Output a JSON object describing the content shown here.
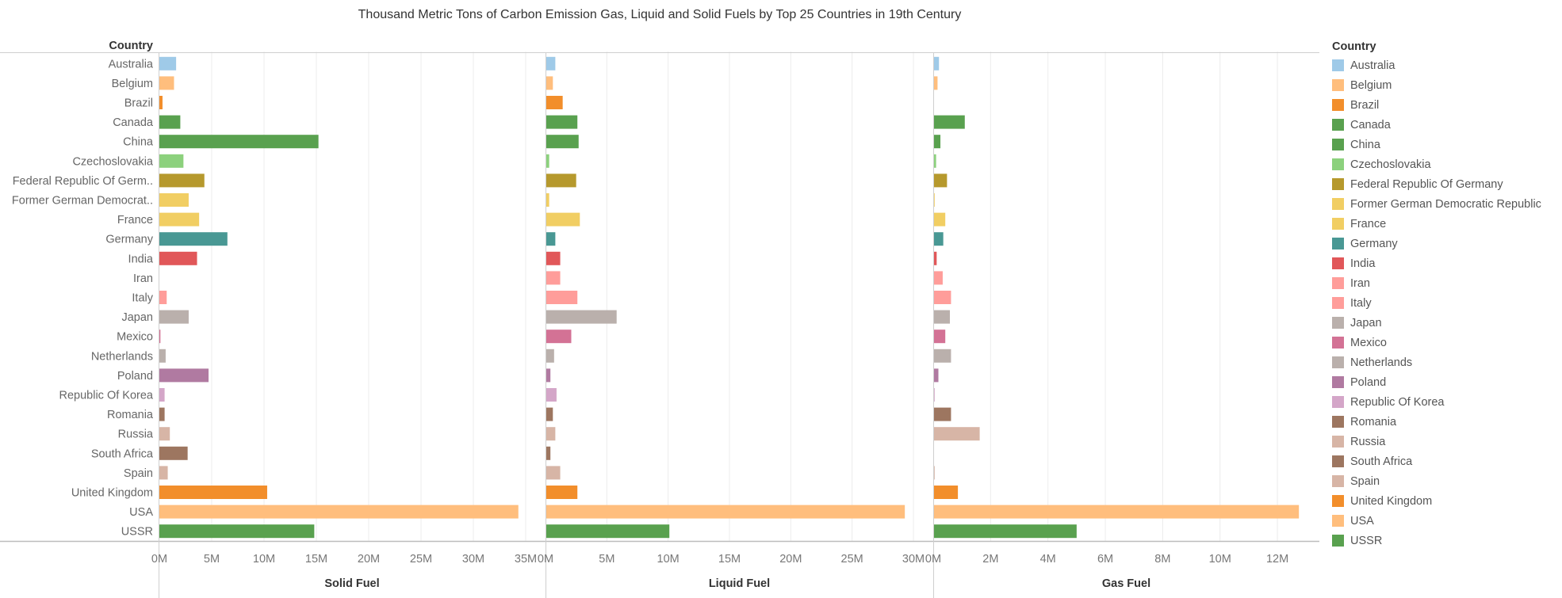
{
  "title": "Thousand Metric Tons of Carbon Emission Gas, Liquid and Solid Fuels by Top 25 Countries in 19th Century",
  "row_header": "Country",
  "legend_title": "Country",
  "chart_data": {
    "type": "bar",
    "orientation": "horizontal",
    "categories": [
      "Australia",
      "Belgium",
      "Brazil",
      "Canada",
      "China",
      "Czechoslovakia",
      "Federal Republic Of Germ..",
      "Former German Democrat..",
      "France",
      "Germany",
      "India",
      "Iran",
      "Italy",
      "Japan",
      "Mexico",
      "Netherlands",
      "Poland",
      "Republic Of Korea",
      "Romania",
      "Russia",
      "South Africa",
      "Spain",
      "United Kingdom",
      "USA",
      "USSR"
    ],
    "legend_labels": [
      "Australia",
      "Belgium",
      "Brazil",
      "Canada",
      "China",
      "Czechoslovakia",
      "Federal Republic Of Germany",
      "Former German Democratic Republic",
      "France",
      "Germany",
      "India",
      "Iran",
      "Italy",
      "Japan",
      "Mexico",
      "Netherlands",
      "Poland",
      "Republic Of Korea",
      "Romania",
      "Russia",
      "South Africa",
      "Spain",
      "United Kingdom",
      "USA",
      "USSR"
    ],
    "colors": [
      "#9FCAE8",
      "#FFBE7D",
      "#F28E2B",
      "#59A14F",
      "#59A14F",
      "#8CD17D",
      "#B6992D",
      "#F1CE63",
      "#F1CE63",
      "#499894",
      "#E15759",
      "#FF9D9A",
      "#FF9D9A",
      "#BAB0AC",
      "#D37295",
      "#BAB0AC",
      "#B07AA1",
      "#D4A6C8",
      "#9D7660",
      "#D7B5A6",
      "#9D7660",
      "#D7B5A6",
      "#F28E2B",
      "#FFBE7D",
      "#59A14F"
    ],
    "series": [
      {
        "name": "Solid Fuel",
        "max": 35000000,
        "tick_values": [
          0,
          5000000,
          10000000,
          15000000,
          20000000,
          25000000,
          30000000,
          35000000
        ],
        "tick_labels": [
          "0M",
          "5M",
          "10M",
          "15M",
          "20M",
          "25M",
          "30M",
          "35M"
        ],
        "values": [
          1600000,
          1400000,
          300000,
          2000000,
          15200000,
          2300000,
          4300000,
          2800000,
          3800000,
          6500000,
          3600000,
          0,
          700000,
          2800000,
          100000,
          600000,
          4700000,
          500000,
          500000,
          1000000,
          2700000,
          800000,
          10300000,
          34300000,
          14800000
        ]
      },
      {
        "name": "Liquid Fuel",
        "max": 30000000,
        "tick_values": [
          0,
          5000000,
          10000000,
          15000000,
          20000000,
          25000000,
          30000000
        ],
        "tick_labels": [
          "0M",
          "5M",
          "10M",
          "15M",
          "20M",
          "25M",
          "30M"
        ],
        "values": [
          800000,
          600000,
          1400000,
          2600000,
          2700000,
          300000,
          2500000,
          300000,
          2800000,
          800000,
          1200000,
          1200000,
          2600000,
          5800000,
          2100000,
          700000,
          400000,
          900000,
          600000,
          800000,
          400000,
          1200000,
          2600000,
          29300000,
          10100000
        ]
      },
      {
        "name": "Gas Fuel",
        "max": 12800000,
        "tick_values": [
          0,
          2000000,
          4000000,
          6000000,
          8000000,
          10000000,
          12000000
        ],
        "tick_labels": [
          "0M",
          "2M",
          "4M",
          "6M",
          "8M",
          "10M",
          "12M"
        ],
        "values": [
          200000,
          150000,
          20000,
          1100000,
          250000,
          100000,
          480000,
          50000,
          420000,
          350000,
          120000,
          330000,
          620000,
          580000,
          420000,
          620000,
          180000,
          50000,
          620000,
          1620000,
          20000,
          50000,
          860000,
          12750000,
          5000000
        ]
      }
    ]
  }
}
